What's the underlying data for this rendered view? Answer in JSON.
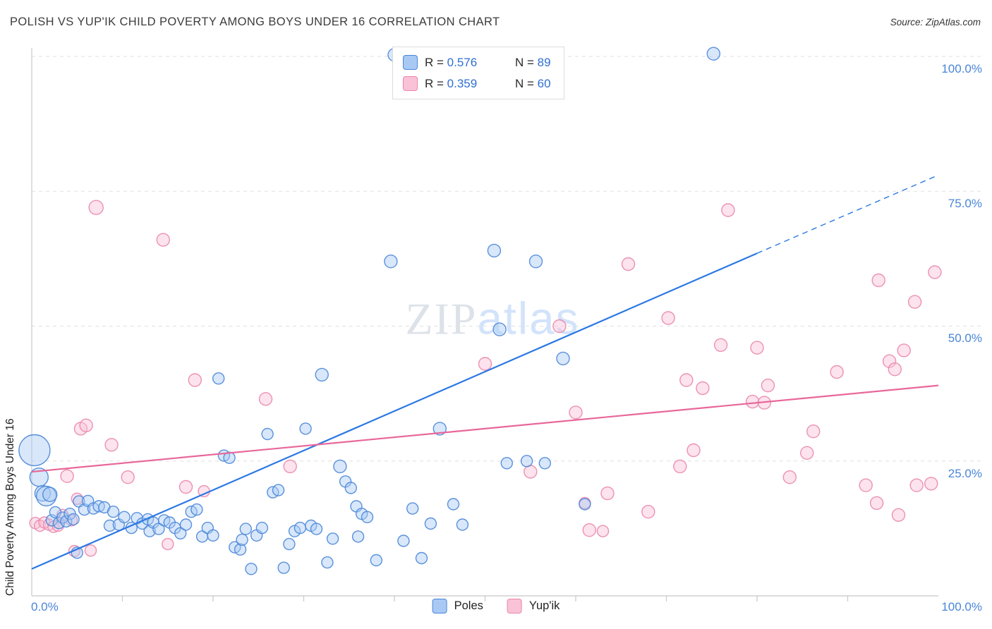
{
  "header": {
    "title": "POLISH VS YUP'IK CHILD POVERTY AMONG BOYS UNDER 16 CORRELATION CHART",
    "source": "Source: ZipAtlas.com"
  },
  "watermark": {
    "part1": "ZIP",
    "part2": "atlas"
  },
  "axes": {
    "y_label": "Child Poverty Among Boys Under 16",
    "x_min_label": "0.0%",
    "x_max_label": "100.0%",
    "y_tick_labels": [
      "100.0%",
      "75.0%",
      "50.0%",
      "25.0%"
    ]
  },
  "top_legend": {
    "rows": [
      {
        "r_label": "R =",
        "r_value": "0.576",
        "n_label": "N =",
        "n_value": "89"
      },
      {
        "r_label": "R =",
        "r_value": "0.359",
        "n_label": "N =",
        "n_value": "60"
      }
    ]
  },
  "bottom_legend": {
    "items": [
      {
        "label": "Poles"
      },
      {
        "label": "Yup'ik"
      }
    ]
  },
  "colors": {
    "blue_stroke": "#4a86d8",
    "blue_fill": "#a9c9f5",
    "blue_line": "#2b78e4",
    "pink_stroke": "#ea86ab",
    "pink_fill": "#f9c2d7",
    "pink_line": "#e8679a",
    "grid": "#e0e0e0",
    "axis": "#c8c8c8",
    "tick_label": "#4a86d8"
  },
  "chart_data": {
    "type": "scatter",
    "x_range": [
      0,
      100
    ],
    "y_range": [
      0,
      100
    ],
    "y_gridlines": [
      25,
      50,
      75,
      100
    ],
    "x_tick_step": 10,
    "series": [
      {
        "name": "Poles",
        "color": "#4a86d8",
        "fill": "#a9c9f5",
        "r": 0.576,
        "n": 89,
        "points": [
          [
            0.3,
            27,
            22
          ],
          [
            0.8,
            22,
            13
          ],
          [
            1.2,
            19,
            11
          ],
          [
            1.6,
            18.5,
            14
          ],
          [
            2.0,
            18.8,
            10
          ],
          [
            2.2,
            14,
            8
          ],
          [
            2.6,
            15.5,
            8
          ],
          [
            3.0,
            13.5,
            8
          ],
          [
            3.4,
            14.5,
            8
          ],
          [
            3.8,
            13.8,
            8
          ],
          [
            4.2,
            15.2,
            8
          ],
          [
            4.6,
            14.2,
            8
          ],
          [
            5.0,
            8,
            8
          ],
          [
            5.2,
            17.5,
            8
          ],
          [
            5.8,
            16,
            8
          ],
          [
            6.2,
            17.6,
            8
          ],
          [
            6.8,
            16.2,
            8
          ],
          [
            7.4,
            16.6,
            8
          ],
          [
            8.0,
            16.4,
            8
          ],
          [
            8.6,
            13,
            8
          ],
          [
            9.0,
            15.6,
            8
          ],
          [
            9.6,
            13.2,
            8
          ],
          [
            10.2,
            14.6,
            8
          ],
          [
            11.0,
            12.6,
            8
          ],
          [
            11.6,
            14.4,
            8
          ],
          [
            12.2,
            13.4,
            8
          ],
          [
            12.8,
            14.2,
            8
          ],
          [
            13.0,
            12.0,
            8
          ],
          [
            13.4,
            13.6,
            8
          ],
          [
            14.0,
            12.4,
            8
          ],
          [
            14.6,
            14.0,
            8
          ],
          [
            15.2,
            13.6,
            8
          ],
          [
            15.8,
            12.6,
            8
          ],
          [
            16.4,
            11.6,
            8
          ],
          [
            17.0,
            13.2,
            8
          ],
          [
            17.6,
            15.6,
            8
          ],
          [
            18.2,
            16.0,
            8
          ],
          [
            18.8,
            11.0,
            8
          ],
          [
            19.4,
            12.6,
            8
          ],
          [
            20.0,
            11.2,
            8
          ],
          [
            20.6,
            40.3,
            8
          ],
          [
            21.2,
            26.0,
            8
          ],
          [
            21.8,
            25.6,
            8
          ],
          [
            22.4,
            9.0,
            8
          ],
          [
            23.0,
            8.6,
            8
          ],
          [
            23.2,
            10.4,
            8
          ],
          [
            23.6,
            12.4,
            8
          ],
          [
            24.2,
            5.0,
            8
          ],
          [
            24.8,
            11.2,
            8
          ],
          [
            25.4,
            12.6,
            8
          ],
          [
            26.0,
            30.0,
            8
          ],
          [
            26.6,
            19.2,
            8
          ],
          [
            27.2,
            19.6,
            8
          ],
          [
            27.8,
            5.2,
            8
          ],
          [
            28.4,
            9.6,
            8
          ],
          [
            29.0,
            12.0,
            8
          ],
          [
            29.6,
            12.6,
            8
          ],
          [
            30.2,
            31.0,
            8
          ],
          [
            30.8,
            13.0,
            8
          ],
          [
            31.4,
            12.4,
            8
          ],
          [
            32.0,
            41.0,
            9
          ],
          [
            32.6,
            6.2,
            8
          ],
          [
            33.2,
            10.6,
            8
          ],
          [
            34.0,
            24.0,
            9
          ],
          [
            34.6,
            21.2,
            8
          ],
          [
            35.2,
            20.0,
            8
          ],
          [
            35.8,
            16.6,
            8
          ],
          [
            36.0,
            11.0,
            8
          ],
          [
            36.4,
            15.2,
            8
          ],
          [
            37.0,
            14.6,
            8
          ],
          [
            38.0,
            6.6,
            8
          ],
          [
            39.6,
            62.0,
            9
          ],
          [
            40.0,
            100.3,
            9
          ],
          [
            41.0,
            10.2,
            8
          ],
          [
            42.0,
            16.2,
            8
          ],
          [
            43.0,
            7.0,
            8
          ],
          [
            44.0,
            13.4,
            8
          ],
          [
            45.0,
            31.0,
            9
          ],
          [
            46.5,
            17.0,
            8
          ],
          [
            47.5,
            13.2,
            8
          ],
          [
            51.0,
            64.0,
            9
          ],
          [
            51.6,
            49.4,
            9
          ],
          [
            52.4,
            24.6,
            8
          ],
          [
            54.6,
            25.0,
            8
          ],
          [
            55.6,
            62.0,
            9
          ],
          [
            56.6,
            24.6,
            8
          ],
          [
            58.6,
            44.0,
            9
          ],
          [
            61.0,
            17.0,
            8
          ],
          [
            75.2,
            100.5,
            9
          ]
        ]
      },
      {
        "name": "Yup'ik",
        "color": "#ea86ab",
        "fill": "#f9c2d7",
        "r": 0.359,
        "n": 60,
        "points": [
          [
            0.4,
            13.5,
            8
          ],
          [
            0.9,
            13.0,
            8
          ],
          [
            1.4,
            13.6,
            8
          ],
          [
            1.9,
            13.2,
            8
          ],
          [
            2.4,
            12.8,
            8
          ],
          [
            2.9,
            13.0,
            8
          ],
          [
            3.4,
            15.0,
            8
          ],
          [
            3.9,
            22.2,
            9
          ],
          [
            4.4,
            14.0,
            8
          ],
          [
            4.7,
            8.3,
            8
          ],
          [
            5.0,
            18.0,
            8
          ],
          [
            5.4,
            31.0,
            9
          ],
          [
            6.0,
            31.6,
            9
          ],
          [
            6.5,
            8.4,
            8
          ],
          [
            7.1,
            72.0,
            10
          ],
          [
            8.8,
            28.0,
            9
          ],
          [
            10.6,
            22.0,
            9
          ],
          [
            14.5,
            66.0,
            9
          ],
          [
            15.0,
            9.6,
            8
          ],
          [
            17.0,
            20.2,
            9
          ],
          [
            18.0,
            40.0,
            9
          ],
          [
            19.0,
            19.4,
            8
          ],
          [
            25.8,
            36.5,
            9
          ],
          [
            28.5,
            24.0,
            9
          ],
          [
            50.0,
            43.0,
            9
          ],
          [
            55.0,
            23.0,
            9
          ],
          [
            58.2,
            50.0,
            9
          ],
          [
            60.0,
            34.0,
            9
          ],
          [
            61.0,
            17.2,
            8
          ],
          [
            61.5,
            12.2,
            9
          ],
          [
            63.0,
            12.0,
            8
          ],
          [
            63.5,
            19.0,
            9
          ],
          [
            65.8,
            61.5,
            9
          ],
          [
            68.0,
            15.6,
            9
          ],
          [
            70.2,
            51.5,
            9
          ],
          [
            71.5,
            24.0,
            9
          ],
          [
            72.2,
            40.0,
            9
          ],
          [
            73.0,
            27.0,
            9
          ],
          [
            74.0,
            38.5,
            9
          ],
          [
            76.0,
            46.5,
            9
          ],
          [
            76.8,
            71.5,
            9
          ],
          [
            79.5,
            36.0,
            9
          ],
          [
            80.0,
            46.0,
            9
          ],
          [
            80.8,
            35.8,
            9
          ],
          [
            81.2,
            39.0,
            9
          ],
          [
            83.6,
            22.0,
            9
          ],
          [
            85.5,
            26.5,
            9
          ],
          [
            86.2,
            30.5,
            9
          ],
          [
            88.8,
            41.5,
            9
          ],
          [
            92.0,
            20.5,
            9
          ],
          [
            93.2,
            17.2,
            9
          ],
          [
            93.4,
            58.5,
            9
          ],
          [
            94.6,
            43.5,
            9
          ],
          [
            95.2,
            42.0,
            9
          ],
          [
            95.6,
            15.0,
            9
          ],
          [
            96.2,
            45.5,
            9
          ],
          [
            97.4,
            54.5,
            9
          ],
          [
            97.6,
            20.5,
            9
          ],
          [
            99.2,
            20.8,
            9
          ],
          [
            99.6,
            60.0,
            9
          ]
        ]
      }
    ],
    "trend_lines": [
      {
        "series": "Poles",
        "color": "#2b78e4",
        "solid_from": [
          0,
          5
        ],
        "solid_to": [
          80,
          63.5
        ],
        "dashed_to": [
          100,
          78
        ]
      },
      {
        "series": "Yup'ik",
        "color": "#e8679a",
        "solid_from": [
          0,
          23
        ],
        "solid_to": [
          100,
          39
        ]
      }
    ]
  }
}
